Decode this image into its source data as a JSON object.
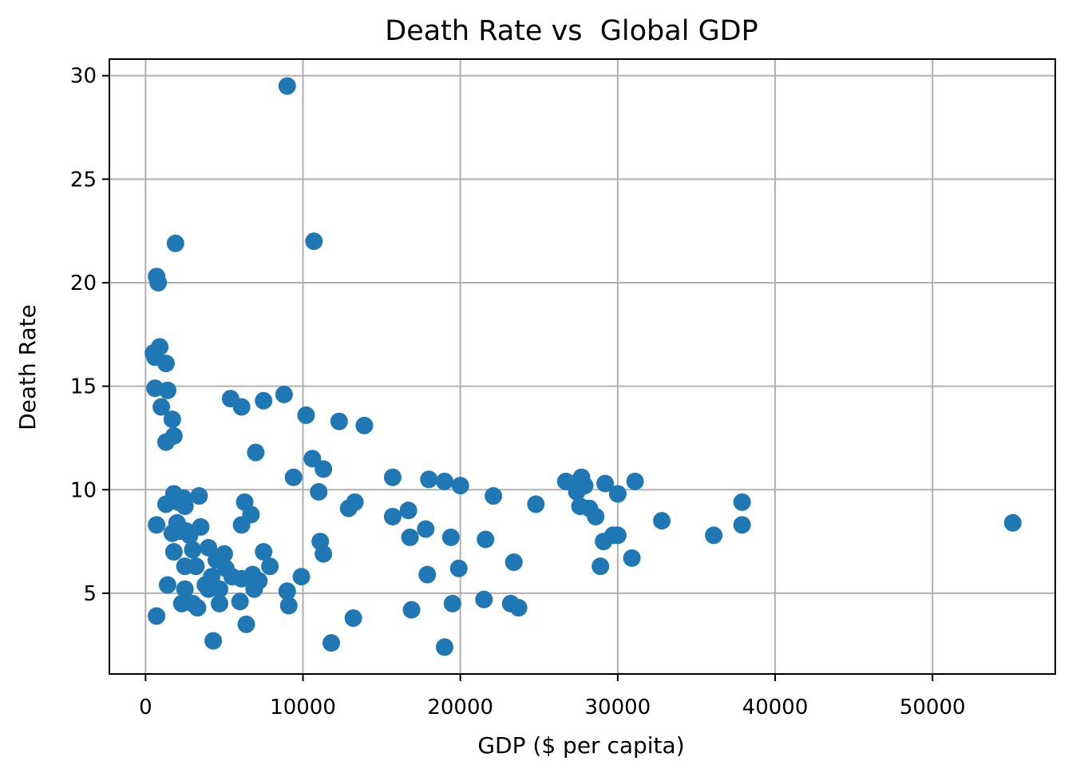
{
  "chart_data": {
    "type": "scatter",
    "title": "Death Rate vs  Global GDP",
    "xlabel": "GDP ($ per capita)",
    "ylabel": "Death Rate",
    "xlim": [
      -2300,
      57800
    ],
    "ylim": [
      1.1,
      30.8
    ],
    "xticks": [
      0,
      10000,
      20000,
      30000,
      40000,
      50000
    ],
    "yticks": [
      5,
      10,
      15,
      20,
      25,
      30
    ],
    "grid": true,
    "marker_color": "#1f77b4",
    "points": [
      [
        9000,
        29.5
      ],
      [
        10700,
        22.0
      ],
      [
        1900,
        21.9
      ],
      [
        700,
        20.3
      ],
      [
        800,
        20.0
      ],
      [
        900,
        16.9
      ],
      [
        500,
        16.6
      ],
      [
        600,
        16.4
      ],
      [
        1300,
        16.1
      ],
      [
        600,
        14.9
      ],
      [
        1400,
        14.8
      ],
      [
        1000,
        14.0
      ],
      [
        1700,
        13.4
      ],
      [
        1800,
        12.6
      ],
      [
        1300,
        12.3
      ],
      [
        5400,
        14.4
      ],
      [
        6100,
        14.0
      ],
      [
        7500,
        14.3
      ],
      [
        8800,
        14.6
      ],
      [
        10200,
        13.6
      ],
      [
        12300,
        13.3
      ],
      [
        13900,
        13.1
      ],
      [
        7000,
        11.8
      ],
      [
        10600,
        11.5
      ],
      [
        11300,
        11.0
      ],
      [
        9400,
        10.6
      ],
      [
        11000,
        9.9
      ],
      [
        15700,
        10.6
      ],
      [
        18000,
        10.5
      ],
      [
        19000,
        10.4
      ],
      [
        20000,
        10.2
      ],
      [
        22100,
        9.7
      ],
      [
        24800,
        9.3
      ],
      [
        26700,
        10.4
      ],
      [
        27200,
        10.3
      ],
      [
        27700,
        10.6
      ],
      [
        27400,
        9.9
      ],
      [
        27900,
        10.2
      ],
      [
        27600,
        9.2
      ],
      [
        28200,
        9.1
      ],
      [
        28600,
        8.7
      ],
      [
        29200,
        10.3
      ],
      [
        30000,
        9.8
      ],
      [
        31100,
        10.4
      ],
      [
        32800,
        8.5
      ],
      [
        37900,
        9.4
      ],
      [
        36100,
        7.8
      ],
      [
        37900,
        8.3
      ],
      [
        55100,
        8.4
      ],
      [
        29100,
        7.5
      ],
      [
        29700,
        7.8
      ],
      [
        30000,
        7.8
      ],
      [
        28900,
        6.3
      ],
      [
        30900,
        6.7
      ],
      [
        1800,
        9.8
      ],
      [
        2100,
        9.4
      ],
      [
        2500,
        9.2
      ],
      [
        1300,
        9.3
      ],
      [
        3400,
        9.7
      ],
      [
        2400,
        9.6
      ],
      [
        700,
        8.3
      ],
      [
        1700,
        7.9
      ],
      [
        2000,
        8.4
      ],
      [
        2200,
        8.0
      ],
      [
        2800,
        7.8
      ],
      [
        3500,
        8.2
      ],
      [
        2600,
        8.0
      ],
      [
        1800,
        7.0
      ],
      [
        2500,
        6.3
      ],
      [
        3000,
        7.1
      ],
      [
        3200,
        6.3
      ],
      [
        4000,
        7.2
      ],
      [
        4500,
        6.6
      ],
      [
        5000,
        6.9
      ],
      [
        6300,
        9.4
      ],
      [
        6100,
        8.3
      ],
      [
        6700,
        8.8
      ],
      [
        5100,
        6.2
      ],
      [
        5500,
        5.8
      ],
      [
        6100,
        5.7
      ],
      [
        6800,
        5.9
      ],
      [
        7500,
        7.0
      ],
      [
        7900,
        6.3
      ],
      [
        6900,
        5.2
      ],
      [
        7200,
        5.6
      ],
      [
        1400,
        5.4
      ],
      [
        2500,
        5.2
      ],
      [
        3800,
        5.4
      ],
      [
        4200,
        5.8
      ],
      [
        4000,
        5.2
      ],
      [
        2300,
        4.5
      ],
      [
        3300,
        4.3
      ],
      [
        3000,
        4.5
      ],
      [
        4700,
        4.5
      ],
      [
        4700,
        5.2
      ],
      [
        6000,
        4.6
      ],
      [
        9000,
        5.1
      ],
      [
        9100,
        4.4
      ],
      [
        9900,
        5.8
      ],
      [
        700,
        3.9
      ],
      [
        6400,
        3.5
      ],
      [
        4300,
        2.7
      ],
      [
        11100,
        7.5
      ],
      [
        11300,
        6.9
      ],
      [
        12900,
        9.1
      ],
      [
        13300,
        9.4
      ],
      [
        15700,
        8.7
      ],
      [
        16700,
        9.0
      ],
      [
        17800,
        8.1
      ],
      [
        16800,
        7.7
      ],
      [
        19400,
        7.7
      ],
      [
        21600,
        7.6
      ],
      [
        17900,
        5.9
      ],
      [
        19900,
        6.2
      ],
      [
        23400,
        6.5
      ],
      [
        16900,
        4.2
      ],
      [
        19500,
        4.5
      ],
      [
        21500,
        4.7
      ],
      [
        23200,
        4.5
      ],
      [
        23700,
        4.3
      ],
      [
        13200,
        3.8
      ],
      [
        11800,
        2.6
      ],
      [
        19000,
        2.4
      ]
    ]
  }
}
